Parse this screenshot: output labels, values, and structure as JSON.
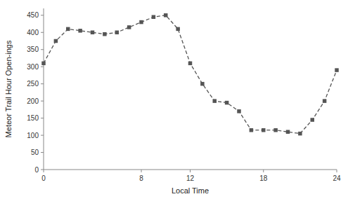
{
  "chart_data": {
    "type": "line",
    "x": [
      0,
      1,
      2,
      3,
      4,
      5,
      6,
      7,
      8,
      9,
      10,
      11,
      12,
      13,
      14,
      15,
      16,
      17,
      18,
      19,
      20,
      21,
      22,
      23,
      24
    ],
    "values": [
      310,
      375,
      410,
      405,
      400,
      395,
      400,
      415,
      430,
      445,
      450,
      410,
      310,
      250,
      200,
      195,
      170,
      115,
      115,
      115,
      110,
      105,
      145,
      200,
      290
    ],
    "xlabel": "Local Time",
    "ylabel": "Meteor Trail Hour Open-ings",
    "xlim": [
      0,
      24
    ],
    "xticks": [
      0,
      8,
      12,
      18,
      24
    ],
    "ylim": [
      0,
      470
    ],
    "yticks": [
      0,
      50,
      100,
      150,
      200,
      250,
      300,
      350,
      400,
      450
    ],
    "color": "#555555",
    "marker": "square",
    "line_style": "dashed",
    "grid": false
  }
}
